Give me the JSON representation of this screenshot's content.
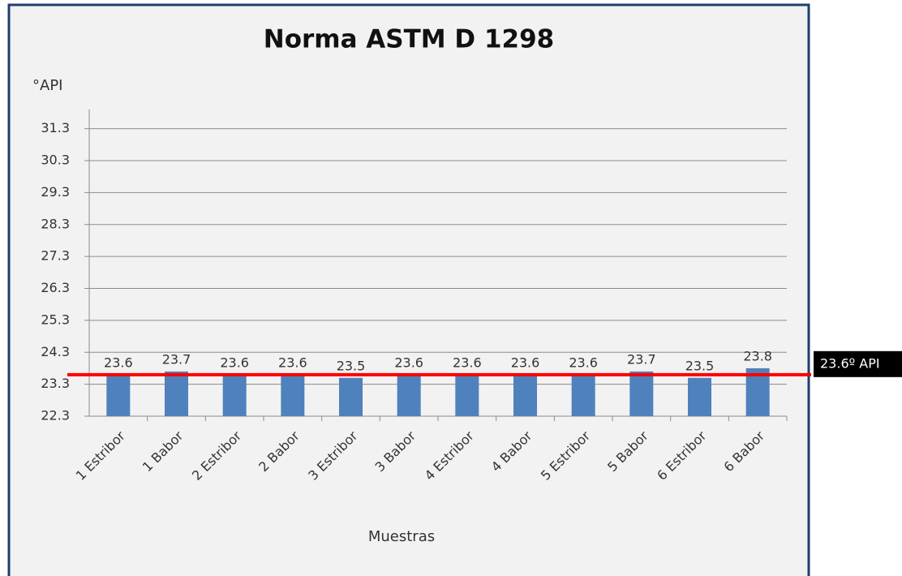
{
  "chart_data": {
    "type": "bar",
    "title": "Norma ASTM D 1298",
    "y_label": "°API",
    "x_label": "Muestras",
    "categories": [
      "1 Estribor",
      "1 Babor",
      "2 Estribor",
      "2 Babor",
      "3 Estribor",
      "3 Babor",
      "4 Estribor",
      "4 Babor",
      "5 Estribor",
      "5 Babor",
      "6 Estribor",
      "6 Babor"
    ],
    "values": [
      23.6,
      23.7,
      23.6,
      23.6,
      23.5,
      23.6,
      23.6,
      23.6,
      23.6,
      23.7,
      23.5,
      23.8
    ],
    "color": "#4f81bd",
    "ylim": [
      22.3,
      31.9
    ],
    "yticks": [
      22.3,
      23.3,
      24.3,
      25.3,
      26.3,
      27.3,
      28.3,
      29.3,
      30.3,
      31.3
    ],
    "grid": true,
    "reference_line": {
      "value": 23.6,
      "label": "23.6º API",
      "color": "#ff0000"
    }
  }
}
